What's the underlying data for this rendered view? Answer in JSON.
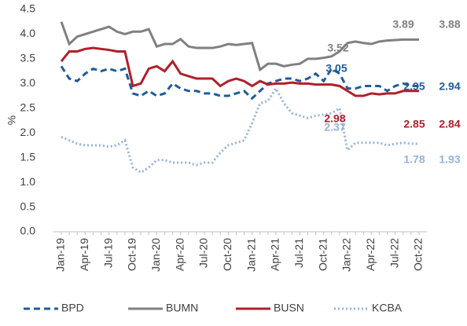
{
  "chart_data": {
    "type": "line",
    "y_label": "%",
    "categories": [
      "Jan-19",
      null,
      null,
      "Apr-19",
      null,
      null,
      "Jul-19",
      null,
      null,
      "Oct-19",
      null,
      null,
      "Jan-20",
      null,
      null,
      "Apr-20",
      null,
      null,
      "Jul-20",
      null,
      null,
      "Oct-20",
      null,
      null,
      "Jan-21",
      null,
      null,
      "Apr-21",
      null,
      null,
      "Jul-21",
      null,
      null,
      "Oct-21",
      null,
      null,
      "Jan-22",
      null,
      null,
      "Apr-22",
      null,
      null,
      "Jul-22",
      null,
      null,
      "Oct-22"
    ],
    "ylim": [
      0,
      4.5
    ],
    "yticks": [
      {
        "value": 0,
        "label": "0.0"
      },
      {
        "value": 0.5,
        "label": "0.5"
      },
      {
        "value": 1,
        "label": "1.0"
      },
      {
        "value": 1.5,
        "label": "1.5"
      },
      {
        "value": 2,
        "label": "2.0"
      },
      {
        "value": 2.5,
        "label": "2.5"
      },
      {
        "value": 3,
        "label": "3.0"
      },
      {
        "value": 3.5,
        "label": "3.5"
      },
      {
        "value": 4,
        "label": "4.0"
      },
      {
        "value": 4.5,
        "label": "4.5"
      }
    ],
    "legend": "bottom",
    "series": [
      {
        "name": "BPD",
        "color": "#1f5c99",
        "style": "dashed",
        "values": [
          3.35,
          3.1,
          3.05,
          3.2,
          3.3,
          3.25,
          3.3,
          3.25,
          3.3,
          2.8,
          2.75,
          2.85,
          2.75,
          2.8,
          3.0,
          2.9,
          2.85,
          2.85,
          2.8,
          2.8,
          2.75,
          2.75,
          2.8,
          2.85,
          2.7,
          2.85,
          3.0,
          3.05,
          3.1,
          3.1,
          3.05,
          3.1,
          3.2,
          3.05,
          3.3,
          3.2,
          2.9,
          2.9,
          2.95,
          2.95,
          2.95,
          2.85,
          2.95,
          3.0,
          2.95,
          2.95
        ]
      },
      {
        "name": "BUMN",
        "color": "#808080",
        "style": "solid",
        "values": [
          4.25,
          3.8,
          3.95,
          4.0,
          4.05,
          4.1,
          4.15,
          4.05,
          4.0,
          4.05,
          4.05,
          4.1,
          3.75,
          3.8,
          3.8,
          3.9,
          3.75,
          3.72,
          3.72,
          3.72,
          3.75,
          3.8,
          3.78,
          3.8,
          3.82,
          3.28,
          3.4,
          3.4,
          3.35,
          3.38,
          3.4,
          3.5,
          3.5,
          3.52,
          3.55,
          3.65,
          3.82,
          3.85,
          3.82,
          3.8,
          3.85,
          3.87,
          3.88,
          3.89,
          3.89,
          3.89
        ]
      },
      {
        "name": "BUSN",
        "color": "#b01f2a",
        "style": "solid",
        "values": [
          3.45,
          3.65,
          3.65,
          3.7,
          3.72,
          3.7,
          3.68,
          3.65,
          3.65,
          2.95,
          3.0,
          3.3,
          3.35,
          3.25,
          3.45,
          3.2,
          3.15,
          3.1,
          3.1,
          3.1,
          2.95,
          3.05,
          3.1,
          3.05,
          2.95,
          3.05,
          2.98,
          3.0,
          3.0,
          3.02,
          3.0,
          3.0,
          2.98,
          2.98,
          2.98,
          2.95,
          2.85,
          2.75,
          2.75,
          2.8,
          2.78,
          2.8,
          2.8,
          2.85,
          2.85,
          2.85
        ]
      },
      {
        "name": "KCBA",
        "color": "#95b3d7",
        "style": "dotted",
        "values": [
          1.92,
          1.85,
          1.78,
          1.75,
          1.75,
          1.75,
          1.72,
          1.75,
          1.85,
          1.3,
          1.2,
          1.3,
          1.45,
          1.45,
          1.4,
          1.4,
          1.4,
          1.35,
          1.4,
          1.4,
          1.6,
          1.75,
          1.8,
          1.85,
          2.2,
          2.6,
          2.65,
          2.9,
          2.6,
          2.4,
          2.35,
          2.3,
          2.35,
          2.37,
          2.4,
          2.5,
          1.65,
          1.8,
          1.8,
          1.8,
          1.8,
          1.75,
          1.78,
          1.8,
          1.78,
          1.78
        ]
      }
    ],
    "annotations": [
      {
        "text": "3.89",
        "color": "#808080"
      },
      {
        "text": "3.88",
        "color": "#808080"
      },
      {
        "text": "3.52",
        "color": "#808080"
      },
      {
        "text": "3.05",
        "color": "#1f5c99"
      },
      {
        "text": "2.95",
        "color": "#1f5c99"
      },
      {
        "text": "2.94",
        "color": "#1f5c99"
      },
      {
        "text": "2.98",
        "color": "#b01f2a"
      },
      {
        "text": "2.85",
        "color": "#b01f2a"
      },
      {
        "text": "2.84",
        "color": "#b01f2a"
      },
      {
        "text": "2.37",
        "color": "#95b3d7"
      },
      {
        "text": "1.78",
        "color": "#95b3d7"
      },
      {
        "text": "1.93",
        "color": "#95b3d7"
      }
    ]
  }
}
